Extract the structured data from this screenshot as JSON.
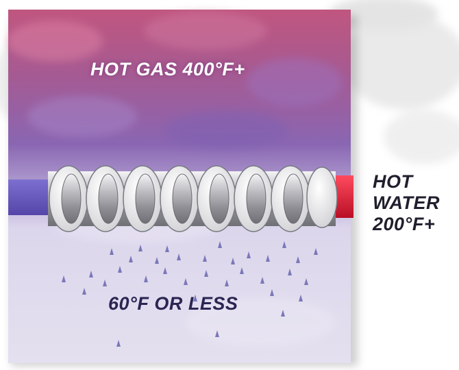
{
  "labels": {
    "hot_gas": "HOT GAS 400°F+",
    "cold": "60°F OR LESS",
    "hot_water_line1": "HOT",
    "hot_water_line2": "WATER",
    "hot_water_line3": "200°F+"
  },
  "colors": {
    "gas_top": "#c0567f",
    "gas_mid": "#8a66b2",
    "cold_zone": "#e1dcee",
    "inlet_pipe": "#6b5cc0",
    "outlet_pipe": "#e0213a",
    "droplet": "#7a78b8",
    "coil": "#c9c9cc"
  },
  "icons": {
    "droplets": "condensate-droplet-icon"
  }
}
